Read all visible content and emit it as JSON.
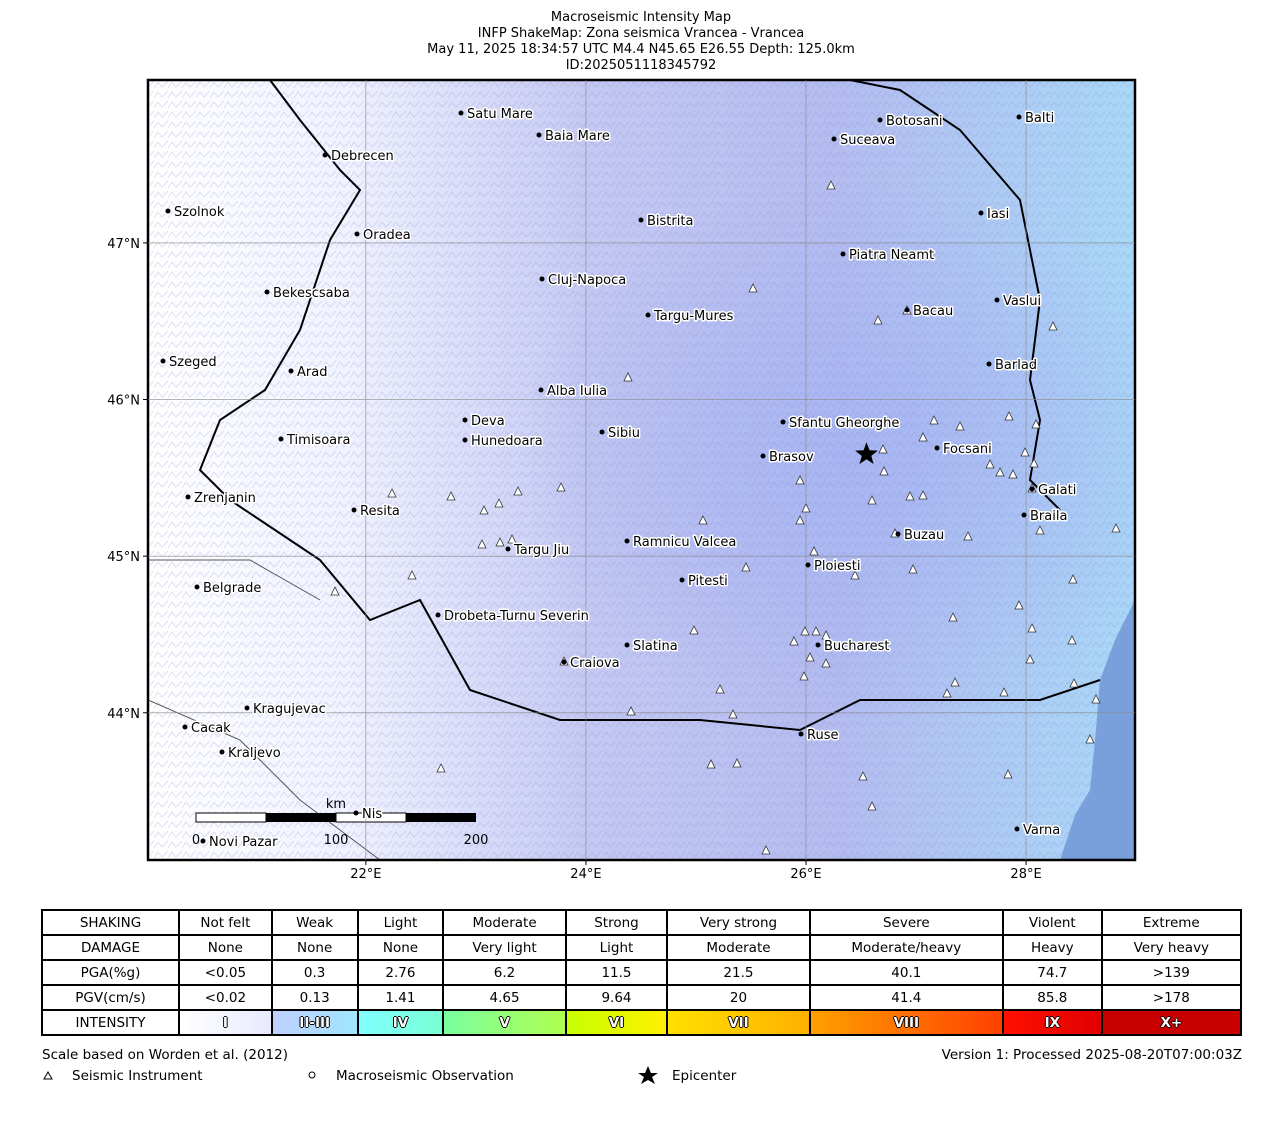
{
  "header": {
    "lines": [
      "Macroseismic Intensity Map",
      "INFP ShakeMap: Zona seismica Vrancea - Vrancea",
      "May 11, 2025 18:34:57 UTC M4.4 N45.65 E26.55 Depth: 125.0km",
      "ID:2025051118345792"
    ]
  },
  "map": {
    "lonlim": [
      20.02,
      28.99
    ],
    "latlim": [
      43.06,
      48.04
    ],
    "lonticks": [
      {
        "value": 22,
        "label": "22°E"
      },
      {
        "value": 24,
        "label": "24°E"
      },
      {
        "value": 26,
        "label": "26°E"
      },
      {
        "value": 28,
        "label": "28°E"
      }
    ],
    "latticks": [
      {
        "value": 44,
        "label": "44°N"
      },
      {
        "value": 45,
        "label": "45°N"
      },
      {
        "value": 46,
        "label": "46°N"
      },
      {
        "value": 47,
        "label": "47°N"
      }
    ],
    "epicenter": {
      "lat": 45.65,
      "lon": 26.55
    },
    "cities": [
      "Satu Mare",
      "Baia Mare",
      "Debrecen",
      "Botosani",
      "Balti",
      "Suceava",
      "Szolnok",
      "Oradea",
      "Bistrita",
      "Iasi",
      "Piatra Neamt",
      "Bekescsaba",
      "Cluj-Napoca",
      "Vaslui",
      "Targu-Mures",
      "Bacau",
      "Szeged",
      "Arad",
      "Barlad",
      "Alba Iulia",
      "Deva",
      "Sfantu Gheorghe",
      "Timisoara",
      "Hunedoara",
      "Sibiu",
      "Focsani",
      "Brasov",
      "Galati",
      "Zrenjanin",
      "Resita",
      "Braila",
      "Buzau",
      "Ramnicu Valcea",
      "Targu Jiu",
      "Ploiesti",
      "Pitesti",
      "Belgrade",
      "Drobeta-Turnu Severin",
      "Slatina",
      "Bucharest",
      "Craiova",
      "Kragujevac",
      "Cacak",
      "Kraljevo",
      "Ruse",
      "Varna",
      "Novi Pazar",
      "Nis"
    ],
    "scale_bar": {
      "unit": "km",
      "labels": [
        "0",
        "100",
        "200"
      ]
    }
  },
  "table": {
    "rows": [
      [
        "SHAKING",
        "Not felt",
        "Weak",
        "Light",
        "Moderate",
        "Strong",
        "Very strong",
        "Severe",
        "Violent",
        "Extreme"
      ],
      [
        "DAMAGE",
        "None",
        "None",
        "None",
        "Very light",
        "Light",
        "Moderate",
        "Moderate/heavy",
        "Heavy",
        "Very heavy"
      ],
      [
        "PGA(%g)",
        "<0.05",
        "0.3",
        "2.76",
        "6.2",
        "11.5",
        "21.5",
        "40.1",
        "74.7",
        ">139"
      ],
      [
        "PGV(cm/s)",
        "<0.02",
        "0.13",
        "1.41",
        "4.65",
        "9.64",
        "20",
        "41.4",
        "85.8",
        ">178"
      ],
      [
        "INTENSITY",
        "I",
        "II-III",
        "IV",
        "V",
        "VI",
        "VII",
        "VIII",
        "IX",
        "X+"
      ]
    ]
  },
  "footer": {
    "left": "Scale based on Worden et al. (2012)",
    "right": "Version 1: Processed 2025-08-20T07:00:03Z",
    "legend": [
      "Seismic Instrument",
      "Macroseismic Observation",
      "Epicenter"
    ]
  }
}
